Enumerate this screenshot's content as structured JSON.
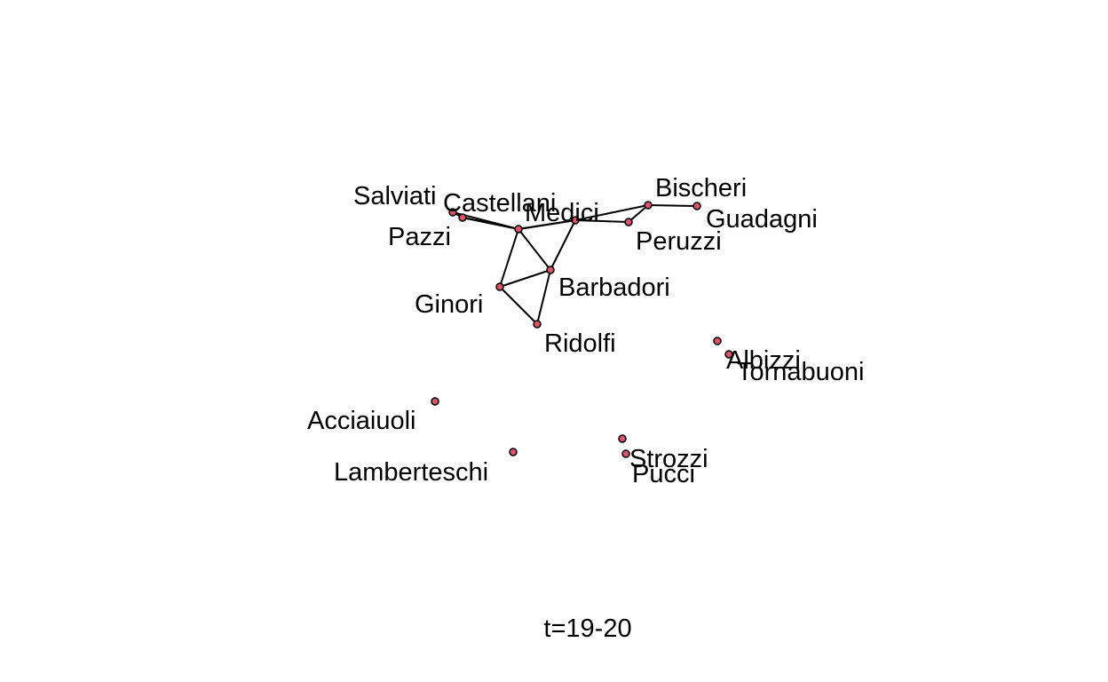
{
  "caption": "t=19-20",
  "colors": {
    "node_fill": "#df536b",
    "node_stroke": "#000000",
    "edge": "#000000",
    "background": "#ffffff"
  },
  "nodes": [
    {
      "id": "salviati",
      "label": "Salviati"
    },
    {
      "id": "castellani",
      "label": "Castellani"
    },
    {
      "id": "medici",
      "label": "Medici"
    },
    {
      "id": "bischeri",
      "label": "Bischeri"
    },
    {
      "id": "guadagni",
      "label": "Guadagni"
    },
    {
      "id": "pazzi",
      "label": "Pazzi"
    },
    {
      "id": "peruzzi",
      "label": "Peruzzi"
    },
    {
      "id": "barbadori",
      "label": "Barbadori"
    },
    {
      "id": "ginori",
      "label": "Ginori"
    },
    {
      "id": "ridolfi",
      "label": "Ridolfi"
    },
    {
      "id": "albizzi",
      "label": "Albizzi"
    },
    {
      "id": "tornabuoni",
      "label": "Tornabuoni"
    },
    {
      "id": "acciaiuoli",
      "label": "Acciaiuoli"
    },
    {
      "id": "lamberteschi",
      "label": "Lamberteschi"
    },
    {
      "id": "strozzi",
      "label": "Strozzi"
    },
    {
      "id": "pucci",
      "label": "Pucci"
    }
  ],
  "edges": [
    [
      "salviati",
      "castellani"
    ],
    [
      "castellani",
      "medici"
    ],
    [
      "salviati",
      "medici"
    ],
    [
      "medici",
      "castellani"
    ],
    [
      "castellani",
      "barbadori"
    ],
    [
      "castellani",
      "ginori"
    ],
    [
      "medici",
      "barbadori"
    ],
    [
      "medici",
      "peruzzi"
    ],
    [
      "peruzzi",
      "bischeri"
    ],
    [
      "medici",
      "bischeri"
    ],
    [
      "bischeri",
      "guadagni"
    ],
    [
      "ginori",
      "barbadori"
    ],
    [
      "ginori",
      "ridolfi"
    ],
    [
      "barbadori",
      "ridolfi"
    ]
  ]
}
